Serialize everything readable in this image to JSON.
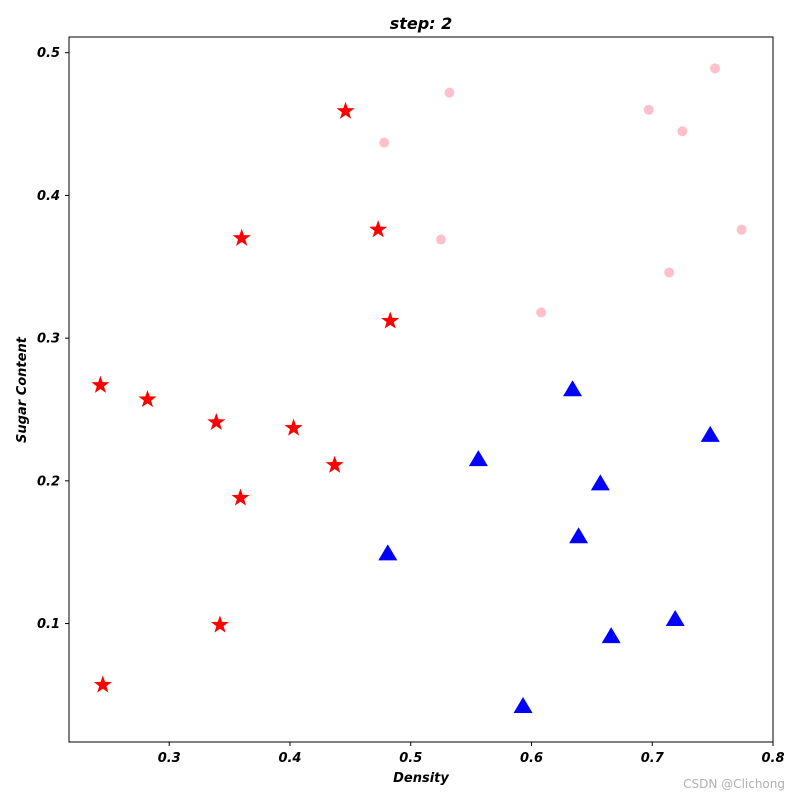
{
  "chart_data": {
    "type": "scatter",
    "title": "step: 2",
    "xlabel": "Density",
    "ylabel": "Sugar Content",
    "xlim": [
      0.217,
      0.8
    ],
    "ylim": [
      0.017,
      0.511
    ],
    "xticks": [
      "0.3",
      "0.4",
      "0.5",
      "0.6",
      "0.7",
      "0.8"
    ],
    "yticks": [
      "0.1",
      "0.2",
      "0.3",
      "0.4",
      "0.5"
    ],
    "grid": false,
    "series": [
      {
        "marker": "circle",
        "color": "#ffc0cb",
        "points": [
          [
            0.532,
            0.472
          ],
          [
            0.478,
            0.437
          ],
          [
            0.697,
            0.46
          ],
          [
            0.752,
            0.489
          ],
          [
            0.725,
            0.445
          ],
          [
            0.525,
            0.369
          ],
          [
            0.774,
            0.376
          ],
          [
            0.714,
            0.346
          ],
          [
            0.608,
            0.318
          ]
        ]
      },
      {
        "marker": "star",
        "color": "#ff0000",
        "points": [
          [
            0.446,
            0.459
          ],
          [
            0.36,
            0.37
          ],
          [
            0.473,
            0.376
          ],
          [
            0.483,
            0.312
          ],
          [
            0.243,
            0.267
          ],
          [
            0.282,
            0.257
          ],
          [
            0.339,
            0.241
          ],
          [
            0.403,
            0.237
          ],
          [
            0.437,
            0.211
          ],
          [
            0.359,
            0.188
          ],
          [
            0.342,
            0.099
          ],
          [
            0.245,
            0.057
          ]
        ]
      },
      {
        "marker": "triangle",
        "color": "#0000ff",
        "points": [
          [
            0.634,
            0.264
          ],
          [
            0.748,
            0.232
          ],
          [
            0.556,
            0.215
          ],
          [
            0.657,
            0.198
          ],
          [
            0.639,
            0.161
          ],
          [
            0.481,
            0.149
          ],
          [
            0.719,
            0.103
          ],
          [
            0.666,
            0.091
          ],
          [
            0.593,
            0.042
          ]
        ]
      }
    ]
  },
  "watermark": "CSDN @Clichong"
}
